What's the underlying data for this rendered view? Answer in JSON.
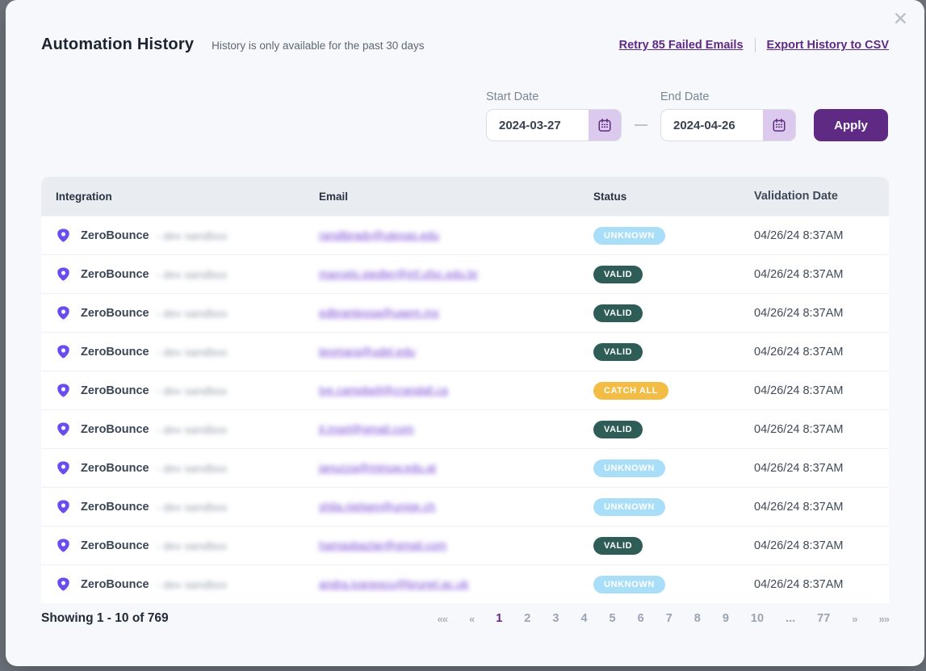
{
  "modal": {
    "title": "Automation History",
    "subtitle": "History is only available for the past 30 days",
    "close_glyph": "✕",
    "actions": {
      "retry": "Retry 85 Failed Emails",
      "export": "Export History to CSV"
    },
    "filters": {
      "start_label": "Start Date",
      "start_value": "2024-03-27",
      "end_label": "End Date",
      "end_value": "2024-04-26",
      "separator": "—",
      "apply_label": "Apply"
    },
    "table": {
      "columns": [
        "Integration",
        "Email",
        "Status",
        "Validation Date"
      ],
      "status_colors": {
        "UNKNOWN": "#a9def9",
        "VALID": "#2e5d57",
        "CATCH ALL": "#f2bc45"
      },
      "rows": [
        {
          "integration": "ZeroBounce",
          "integration_note": "- dev sandbox",
          "email": "randibrady@utexas.edu",
          "status": "UNKNOWN",
          "date": "04/26/24 8:37AM"
        },
        {
          "integration": "ZeroBounce",
          "integration_note": "- dev sandbox",
          "email": "marcelo.siedler@inf.ufsc.edu.br",
          "status": "VALID",
          "date": "04/26/24 8:37AM"
        },
        {
          "integration": "ZeroBounce",
          "integration_note": "- dev sandbox",
          "email": "edbrantessa@uaem.mx",
          "status": "VALID",
          "date": "04/26/24 8:37AM"
        },
        {
          "integration": "ZeroBounce",
          "integration_note": "- dev sandbox",
          "email": "teomara@udel.edu",
          "status": "VALID",
          "date": "04/26/24 8:37AM"
        },
        {
          "integration": "ZeroBounce",
          "integration_note": "- dev sandbox",
          "email": "lye.campbell@crandall.ca",
          "status": "CATCH ALL",
          "date": "04/26/24 8:37AM"
        },
        {
          "integration": "ZeroBounce",
          "integration_note": "- dev sandbox",
          "email": "jt.insel@gmail.com",
          "status": "VALID",
          "date": "04/26/24 8:37AM"
        },
        {
          "integration": "ZeroBounce",
          "integration_note": "- dev sandbox",
          "email": "januzza@minuw.edu.at",
          "status": "UNKNOWN",
          "date": "04/26/24 8:37AM"
        },
        {
          "integration": "ZeroBounce",
          "integration_note": "- dev sandbox",
          "email": "shila.nielsen@unige.ch",
          "status": "UNKNOWN",
          "date": "04/26/24 8:37AM"
        },
        {
          "integration": "ZeroBounce",
          "integration_note": "- dev sandbox",
          "email": "hamasbazlar@gmail.com",
          "status": "VALID",
          "date": "04/26/24 8:37AM"
        },
        {
          "integration": "ZeroBounce",
          "integration_note": "- dev sandbox",
          "email": "andra.ivanescu@brunel.ac.uk",
          "status": "UNKNOWN",
          "date": "04/26/24 8:37AM"
        }
      ]
    },
    "footer": {
      "summary": "Showing 1 - 10 of 769",
      "pagination": [
        "««",
        "«",
        "1",
        "2",
        "3",
        "4",
        "5",
        "6",
        "7",
        "8",
        "9",
        "10",
        "...",
        "77",
        "»",
        "»»"
      ],
      "active_page": "1"
    },
    "colors": {
      "accent_purple": "#5e2a84",
      "brand_violet": "#6a4cf1",
      "status_unknown": "#a9def9",
      "status_valid": "#2e5d57",
      "status_catch_all": "#f2bc45"
    }
  }
}
